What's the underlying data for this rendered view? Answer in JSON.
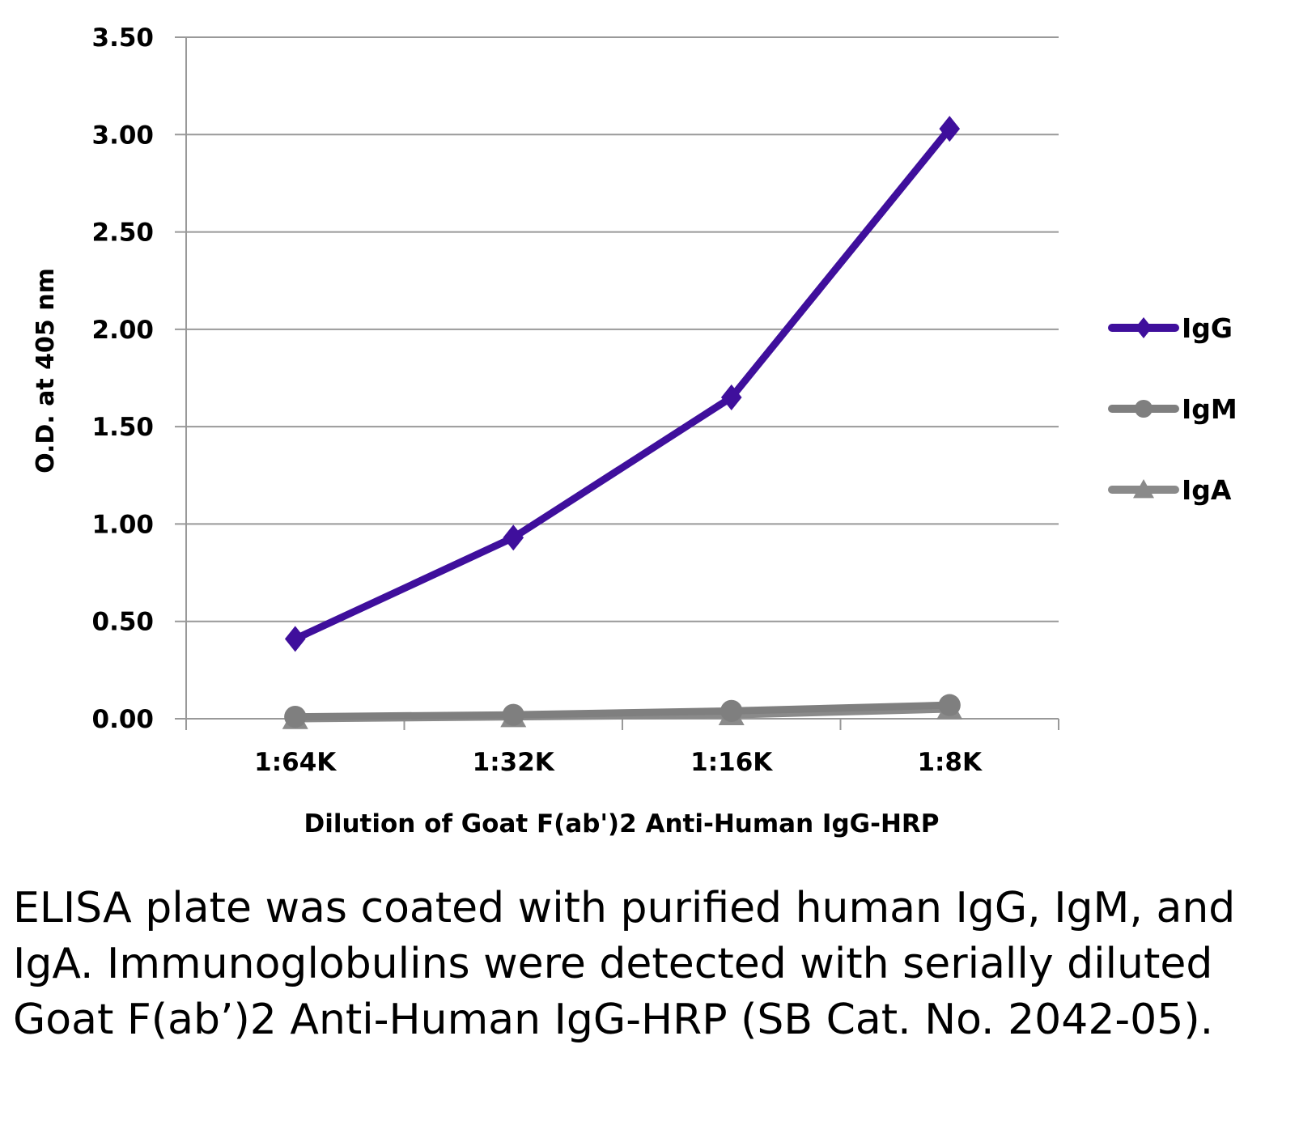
{
  "chart_data": {
    "type": "line",
    "title": "",
    "xlabel": "Dilution of Goat F(ab')2 Anti-Human IgG-HRP",
    "ylabel": "O.D. at 405 nm",
    "categories": [
      "1:64K",
      "1:32K",
      "1:16K",
      "1:8K"
    ],
    "ylim": [
      0,
      3.5
    ],
    "yticks": [
      "0.00",
      "0.50",
      "1.00",
      "1.50",
      "2.00",
      "2.50",
      "3.00",
      "3.50"
    ],
    "ytick_values": [
      0,
      0.5,
      1,
      1.5,
      2,
      2.5,
      3,
      3.5
    ],
    "grid": true,
    "legend_position": "right",
    "series": [
      {
        "name": "IgG",
        "color": "#3f0f9c",
        "marker": "diamond",
        "values": [
          0.41,
          0.93,
          1.65,
          3.03
        ]
      },
      {
        "name": "IgM",
        "color": "#7f7f7f",
        "marker": "circle",
        "values": [
          0.01,
          0.02,
          0.04,
          0.07
        ]
      },
      {
        "name": "IgA",
        "color": "#8a8a8a",
        "marker": "triangle",
        "values": [
          0.0,
          0.01,
          0.02,
          0.05
        ]
      }
    ]
  },
  "caption": "ELISA plate was coated with purified human IgG, IgM, and IgA.  Immunoglobulins were detected with serially diluted Goat F(ab’)2 Anti-Human IgG-HRP (SB Cat. No. 2042-05)."
}
